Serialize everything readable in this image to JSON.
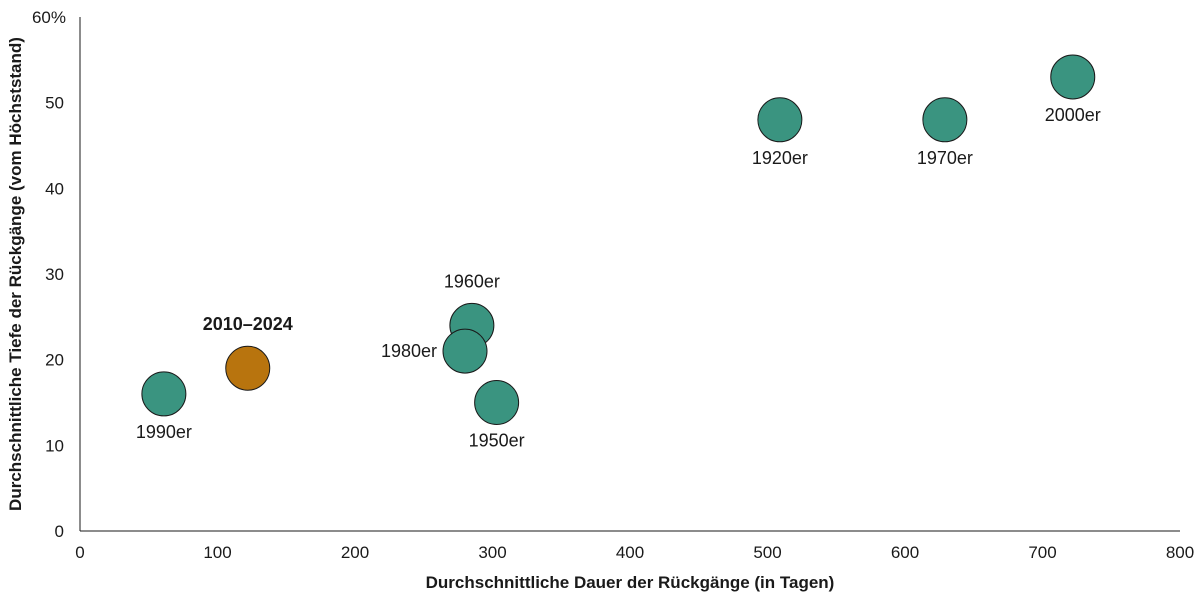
{
  "chart_data": {
    "type": "scatter",
    "xlabel": "Durchschnittliche Dauer der Rückgänge (in Tagen)",
    "ylabel": "Durchschnittliche Tiefe der Rückgänge (vom Höchststand)",
    "xlim": [
      0,
      800
    ],
    "ylim": [
      0,
      60
    ],
    "xticks": [
      "0",
      "100",
      "200",
      "300",
      "400",
      "500",
      "600",
      "700",
      "800"
    ],
    "yticks": [
      "0",
      "10",
      "20",
      "30",
      "40",
      "50",
      "60%"
    ],
    "grid": false,
    "colors": {
      "default": "#3a9480",
      "highlight": "#b8740e",
      "outline": "#1a1a1a"
    },
    "points": [
      {
        "label": "1990er",
        "x": 61,
        "y": 16,
        "label_pos": "below"
      },
      {
        "label": "2010–2024",
        "x": 122,
        "y": 19,
        "label_pos": "above",
        "highlight": true
      },
      {
        "label": "1960er",
        "x": 285,
        "y": 24,
        "label_pos": "above"
      },
      {
        "label": "1980er",
        "x": 280,
        "y": 21,
        "label_pos": "left"
      },
      {
        "label": "1950er",
        "x": 303,
        "y": 15,
        "label_pos": "below"
      },
      {
        "label": "1920er",
        "x": 509,
        "y": 48,
        "label_pos": "below"
      },
      {
        "label": "1970er",
        "x": 629,
        "y": 48,
        "label_pos": "below"
      },
      {
        "label": "2000er",
        "x": 722,
        "y": 53,
        "label_pos": "below"
      }
    ]
  }
}
